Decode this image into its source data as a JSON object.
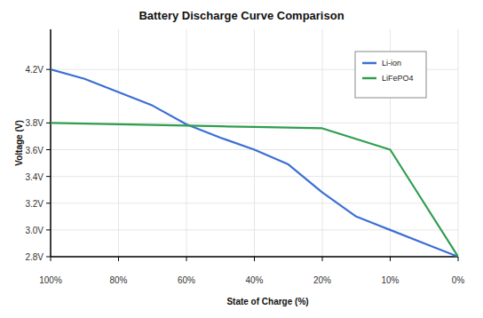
{
  "chart_data": {
    "type": "line",
    "title": "Battery Discharge Curve Comparison",
    "x_label": "State of Charge (%)",
    "y_label": "Voltage (V)",
    "categories": [
      "100%",
      null,
      "80%",
      null,
      "60%",
      null,
      "40%",
      null,
      "20%",
      null,
      "10%",
      null,
      "0%"
    ],
    "series": [
      {
        "name": "Li-ion",
        "color": "#3b6fd4",
        "values": [
          4.2,
          4.13,
          4.03,
          3.93,
          3.79,
          3.69,
          3.6,
          3.49,
          3.28,
          3.1,
          3.0,
          2.9,
          2.8
        ]
      },
      {
        "name": "LiFePO4",
        "color": "#2e9e4f",
        "values": [
          3.8,
          3.795,
          3.79,
          3.785,
          3.78,
          3.775,
          3.77,
          3.765,
          3.76,
          3.68,
          3.6,
          3.2,
          2.8
        ]
      }
    ],
    "ylim": [
      2.8,
      4.5
    ],
    "yticks": [
      {
        "value": 2.8,
        "label": "2.8V"
      },
      {
        "value": 3.0,
        "label": "3.0V"
      },
      {
        "value": 3.2,
        "label": "3.2V"
      },
      {
        "value": 3.4,
        "label": "3.4V"
      },
      {
        "value": 3.6,
        "label": "3.6V"
      },
      {
        "value": 3.8,
        "label": "3.8V"
      },
      {
        "value": 4.2,
        "label": "4.2V"
      }
    ],
    "grid": true,
    "legend": "top-right"
  }
}
